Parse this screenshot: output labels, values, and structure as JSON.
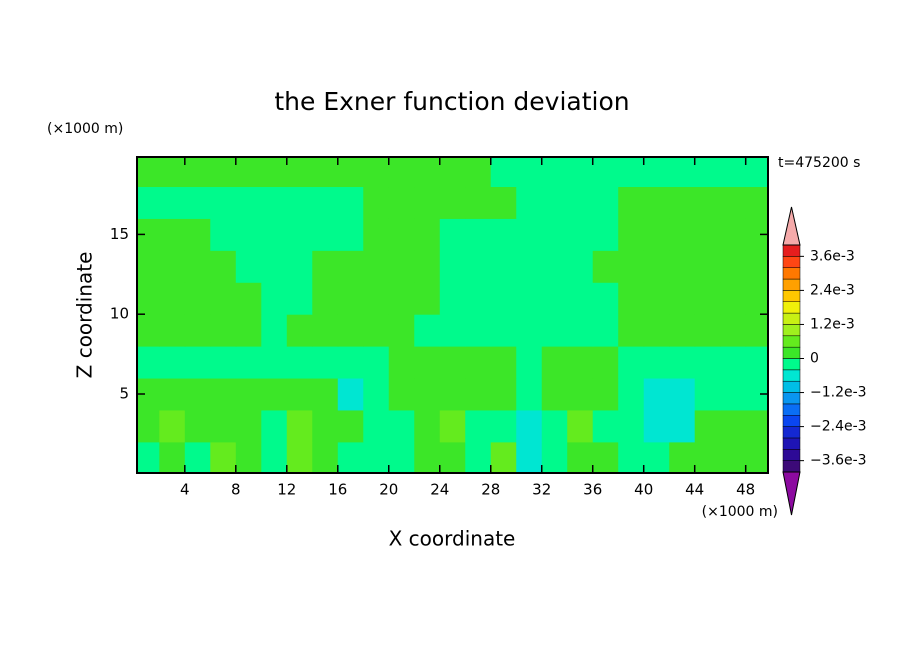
{
  "chart_data": {
    "type": "contour",
    "title": "the Exner function deviation",
    "x_label": "X coordinate",
    "y_label": "Z coordinate",
    "x_unit": "(×1000 m)",
    "y_unit": "(×1000 m)",
    "time_label": "t=475200 s",
    "xlim": [
      0.25,
      49.75
    ],
    "ylim": [
      0.05,
      19.85
    ],
    "xticks": [
      4,
      8,
      12,
      16,
      20,
      24,
      28,
      32,
      36,
      40,
      44,
      48
    ],
    "yticks": [
      5,
      10,
      15
    ],
    "x": [
      1,
      3,
      5,
      7,
      9,
      11,
      13,
      15,
      17,
      19,
      21,
      23,
      25,
      27,
      29,
      31,
      33,
      35,
      37,
      39,
      41,
      43,
      45,
      47,
      49
    ],
    "y": [
      1,
      3,
      5,
      7,
      9,
      11,
      13,
      15,
      17,
      19
    ],
    "z": [
      [
        -0.0002,
        0.0002,
        -0.0002,
        0.0006,
        0.0002,
        -0.0002,
        0.0006,
        0.0002,
        -0.0002,
        -0.0002,
        -0.0002,
        0.0002,
        0.0002,
        -0.0002,
        0.0006,
        -0.0006,
        -0.0002,
        0.0002,
        0.0002,
        -0.0002,
        -0.0002,
        0.0002,
        0.0002,
        0.0002,
        0.0002
      ],
      [
        0.0002,
        0.0006,
        0.0002,
        0.0002,
        0.0002,
        -0.0002,
        0.0006,
        0.0002,
        0.0002,
        -0.0002,
        -0.0002,
        0.0002,
        0.0006,
        -0.0002,
        -0.0002,
        -0.0006,
        -0.0002,
        0.0006,
        -0.0002,
        -0.0002,
        -0.0006,
        -0.0006,
        0.0002,
        0.0002,
        0.0002
      ],
      [
        0.0002,
        0.0002,
        0.0002,
        0.0002,
        0.0002,
        0.0002,
        0.0002,
        0.0002,
        -0.0006,
        -0.0002,
        0.0002,
        0.0002,
        0.0002,
        0.0002,
        0.0002,
        -0.0002,
        0.0002,
        0.0002,
        0.0002,
        -0.0002,
        -0.0006,
        -0.0006,
        -0.0002,
        -0.0002,
        -0.0002
      ],
      [
        -0.0002,
        -0.0002,
        -0.0002,
        -0.0002,
        -0.0002,
        -0.0002,
        -0.0002,
        -0.0002,
        -0.0002,
        -0.0002,
        0.0002,
        0.0002,
        0.0002,
        0.0002,
        0.0002,
        -0.0002,
        0.0002,
        0.0002,
        0.0002,
        -0.0002,
        -0.0002,
        -0.0002,
        -0.0002,
        -0.0002,
        -0.0002
      ],
      [
        0.0002,
        0.0002,
        0.0002,
        0.0002,
        0.0002,
        -0.0002,
        0.0002,
        0.0002,
        0.0002,
        0.0002,
        0.0002,
        -0.0002,
        -0.0002,
        -0.0002,
        -0.0002,
        -0.0002,
        -0.0002,
        -0.0002,
        -0.0002,
        0.0002,
        0.0002,
        0.0002,
        0.0002,
        0.0002,
        0.0002
      ],
      [
        0.0002,
        0.0002,
        0.0002,
        0.0002,
        0.0002,
        -0.0002,
        -0.0002,
        0.0002,
        0.0002,
        0.0002,
        0.0002,
        0.0002,
        -0.0002,
        -0.0002,
        -0.0002,
        -0.0002,
        -0.0002,
        -0.0002,
        -0.0002,
        0.0002,
        0.0002,
        0.0002,
        0.0002,
        0.0002,
        0.0002
      ],
      [
        0.0002,
        0.0002,
        0.0002,
        0.0002,
        -0.0002,
        -0.0002,
        -0.0002,
        0.0002,
        0.0002,
        0.0002,
        0.0002,
        0.0002,
        -0.0002,
        -0.0002,
        -0.0002,
        -0.0002,
        -0.0002,
        -0.0002,
        0.0002,
        0.0002,
        0.0002,
        0.0002,
        0.0002,
        0.0002,
        0.0002
      ],
      [
        0.0002,
        0.0002,
        0.0002,
        -0.0002,
        -0.0002,
        -0.0002,
        -0.0002,
        -0.0002,
        -0.0002,
        0.0002,
        0.0002,
        0.0002,
        -0.0002,
        -0.0002,
        -0.0002,
        -0.0002,
        -0.0002,
        -0.0002,
        -0.0002,
        0.0002,
        0.0002,
        0.0002,
        0.0002,
        0.0002,
        0.0002
      ],
      [
        -0.0002,
        -0.0002,
        -0.0002,
        -0.0002,
        -0.0002,
        -0.0002,
        -0.0002,
        -0.0002,
        -0.0002,
        0.0002,
        0.0002,
        0.0002,
        0.0002,
        0.0002,
        0.0002,
        -0.0002,
        -0.0002,
        -0.0002,
        -0.0002,
        0.0002,
        0.0002,
        0.0002,
        0.0002,
        0.0002,
        0.0002
      ],
      [
        0.0002,
        0.0002,
        0.0002,
        0.0002,
        0.0002,
        0.0002,
        0.0002,
        0.0002,
        0.0002,
        0.0002,
        0.0002,
        0.0002,
        0.0002,
        0.0002,
        -0.0002,
        -0.0002,
        -0.0002,
        -0.0002,
        -0.0002,
        -0.0002,
        -0.0002,
        -0.0002,
        -0.0002,
        -0.0002,
        -0.0002
      ]
    ],
    "colorbar": {
      "levels": [
        -0.004,
        -0.0036,
        -0.0032,
        -0.0028,
        -0.0024,
        -0.002,
        -0.0016,
        -0.0012,
        -0.0008,
        -0.0004,
        0,
        0.0004,
        0.0008,
        0.0012,
        0.0016,
        0.002,
        0.0024,
        0.0028,
        0.0032,
        0.0036,
        0.004
      ],
      "colors": [
        "#3c0a78",
        "#2d0a96",
        "#1e14b4",
        "#1428d2",
        "#0a46f0",
        "#0a6ef5",
        "#0a96f0",
        "#00bee6",
        "#00e6d2",
        "#00fa8c",
        "#3ce628",
        "#64eb1e",
        "#a0f01e",
        "#c8f014",
        "#f0f00a",
        "#ffc800",
        "#ffa000",
        "#ff7800",
        "#ff4614",
        "#e61e1e"
      ],
      "under_color": "#8c0aa0",
      "over_color": "#f5aaaa",
      "ticks": [
        {
          "value": 0.0036,
          "label": "3.6e-3"
        },
        {
          "value": 0.0024,
          "label": "2.4e-3"
        },
        {
          "value": 0.0012,
          "label": "1.2e-3"
        },
        0,
        {
          "value": -0.0012,
          "label": "−1.2e-3"
        },
        {
          "value": -0.0024,
          "label": "−2.4e-3"
        },
        {
          "value": -0.0036,
          "label": "−3.6e-3"
        }
      ]
    }
  }
}
